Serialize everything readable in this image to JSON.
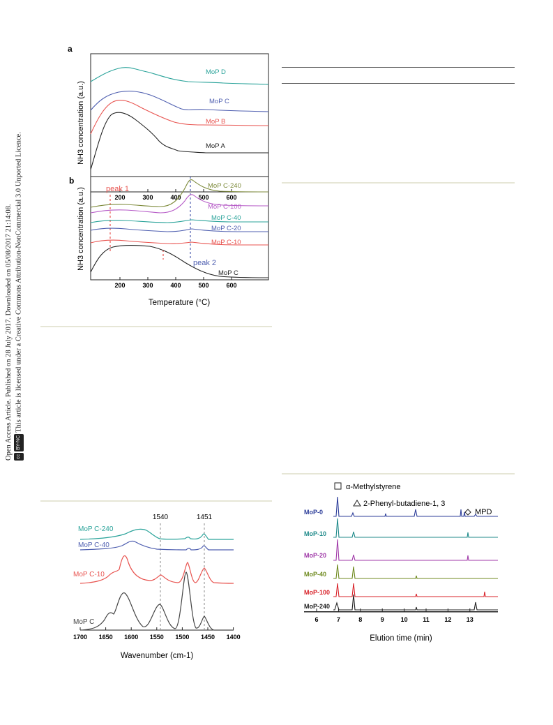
{
  "sidebar": {
    "line1": "Open Access Article. Published on 28 July 2017. Downloaded on 05/08/2017 21:14:08.",
    "line2": "This article is licensed under a Creative Commons Attribution-NonCommercial 3.0 Unported Licence.",
    "cc_badge": "cc",
    "by_nc_badge": "BY-NC"
  },
  "figure_a": {
    "panel_label": "a",
    "ylabel": "NH3 concentration (a.u.)",
    "x_ticks": [
      "200",
      "300",
      "400",
      "500",
      "600"
    ],
    "series_labels": [
      "MoP D",
      "MoP C",
      "MoP B",
      "MoP A"
    ]
  },
  "figure_b": {
    "panel_label": "b",
    "ylabel": "NH3 concentration (a.u.)",
    "xlabel": "Temperature (°C)",
    "x_ticks": [
      "200",
      "300",
      "400",
      "500",
      "600"
    ],
    "series_labels": [
      "MoP C-240",
      "MoP C-100",
      "MoP C-40",
      "MoP C-20",
      "MoP C-10",
      "MoP C"
    ],
    "annotations": [
      "peak 1",
      "peak 2"
    ]
  },
  "figure_ir": {
    "xlabel": "Wavenumber (cm-1)",
    "x_ticks": [
      "1700",
      "1650",
      "1600",
      "1550",
      "1500",
      "1450",
      "1400"
    ],
    "marker_labels": [
      "1540",
      "1451"
    ],
    "series_labels": [
      "MoP C-240",
      "MoP C-40",
      "MoP C-10",
      "MoP C"
    ]
  },
  "figure_gc": {
    "xlabel": "Elution time (min)",
    "x_ticks": [
      "6",
      "7",
      "8",
      "9",
      "10",
      "11",
      "12",
      "13"
    ],
    "legend": [
      "α-Methylstyrene",
      "2-Phenyl-butadiene-1, 3",
      "MPD"
    ],
    "series_labels": [
      "MoP-0",
      "MoP-10",
      "MoP-20",
      "MoP-40",
      "MoP-100",
      "MoP-240"
    ]
  },
  "colors": {
    "black": "#222222",
    "red": "#e8534f",
    "blue": "#4f5fb0",
    "teal": "#2aa39a",
    "purple": "#b65bc7",
    "olive": "#7d8a3a",
    "gc_blue": "#2d3e9a",
    "gc_red": "#d8232a",
    "gc_olive": "#6f8a1f",
    "gc_purple": "#a03aa8",
    "gc_teal": "#1f8a8a"
  }
}
